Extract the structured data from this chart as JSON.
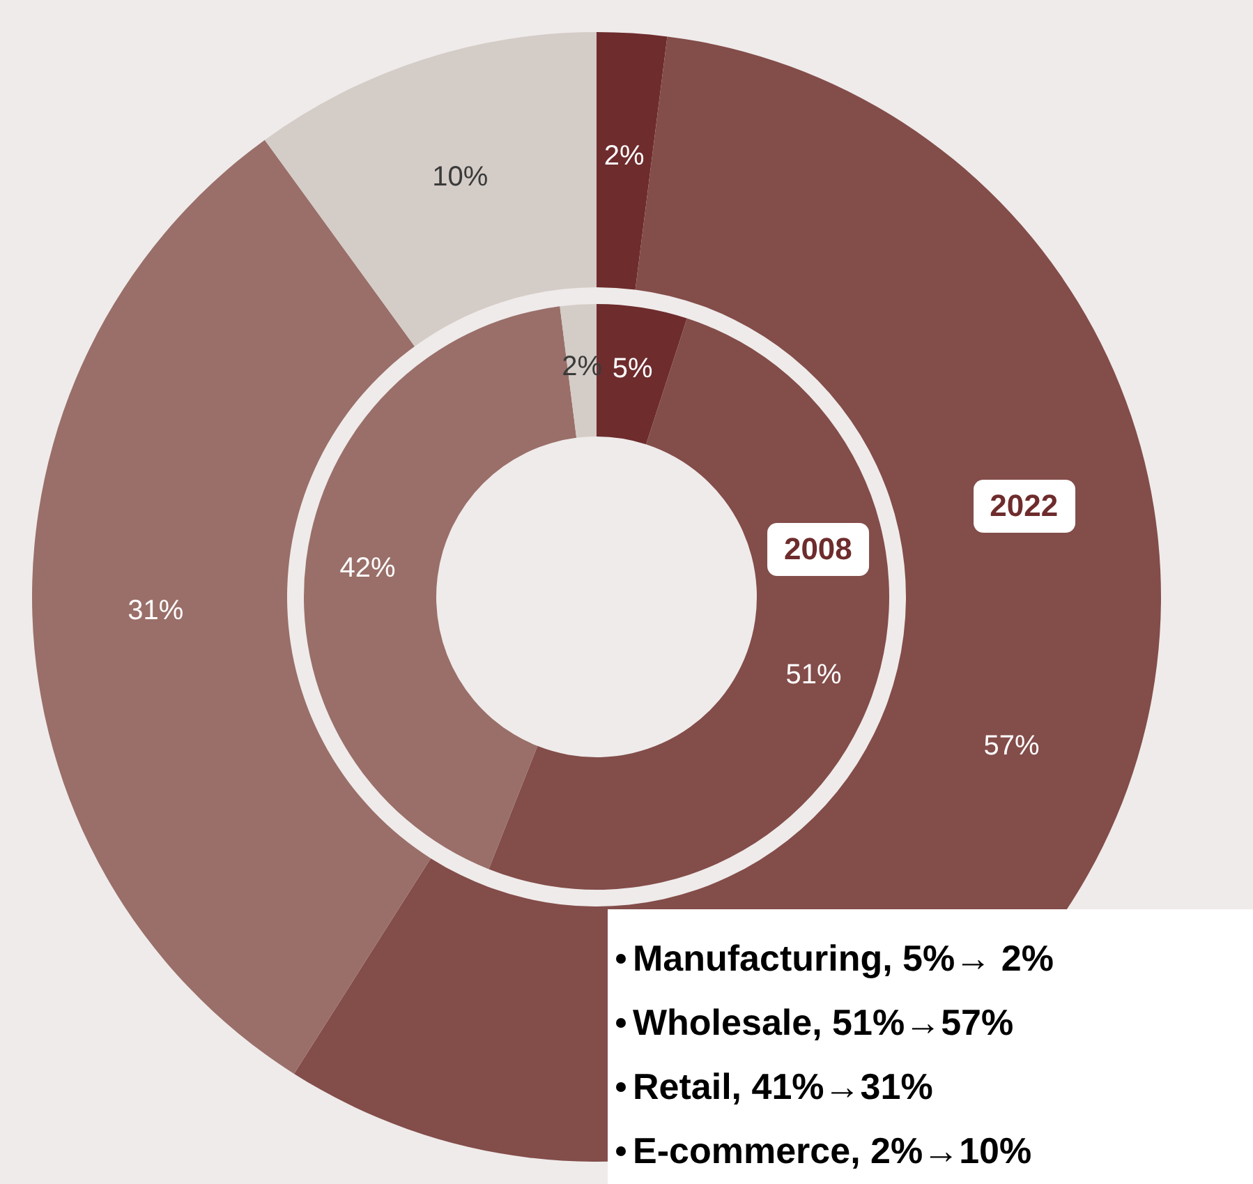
{
  "chart_data": {
    "type": "donut",
    "categories": [
      "Manufacturing",
      "Wholesale",
      "Retail",
      "E-commerce"
    ],
    "series": [
      {
        "name": "2022",
        "values": [
          2,
          57,
          31,
          10
        ],
        "value_labels": [
          "2%",
          "57%",
          "31%",
          "10%"
        ],
        "colors": [
          "#6e2c2d",
          "#834d4a",
          "#9a6f69",
          "#d4ccc7"
        ]
      },
      {
        "name": "2008",
        "values": [
          5,
          51,
          42,
          2
        ],
        "value_labels": [
          "5%",
          "51%",
          "42%",
          "2%"
        ],
        "colors": [
          "#6e2c2d",
          "#834d4a",
          "#9a6f69",
          "#d4ccc7"
        ]
      }
    ],
    "legend": false,
    "annotations": [
      ", 5%→ 2%",
      ", 51%→57%",
      ", 41%→31%",
      ", 2%→10%"
    ]
  }
}
